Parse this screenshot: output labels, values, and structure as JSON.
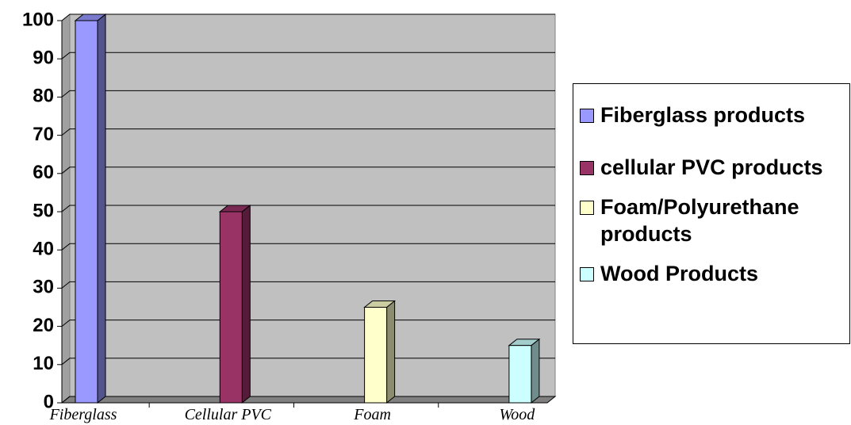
{
  "chart_data": {
    "type": "bar",
    "categories": [
      "Fiberglass",
      "Cellular PVC",
      "Foam",
      "Wood"
    ],
    "series": [
      {
        "name": "Fiberglass products",
        "color": "#9999ff",
        "values": [
          100,
          null,
          null,
          null
        ]
      },
      {
        "name": "cellular PVC products",
        "color": "#993366",
        "values": [
          null,
          50,
          null,
          null
        ]
      },
      {
        "name": "Foam/Polyurethane products",
        "color": "#ffffcc",
        "values": [
          null,
          null,
          25,
          null
        ]
      },
      {
        "name": "Wood Products",
        "color": "#ccffff",
        "values": [
          null,
          null,
          null,
          15
        ]
      }
    ],
    "ylim": [
      0,
      100
    ],
    "yticks": [
      0,
      10,
      20,
      30,
      40,
      50,
      60,
      70,
      80,
      90,
      100
    ],
    "grid": true,
    "legend": "right"
  }
}
